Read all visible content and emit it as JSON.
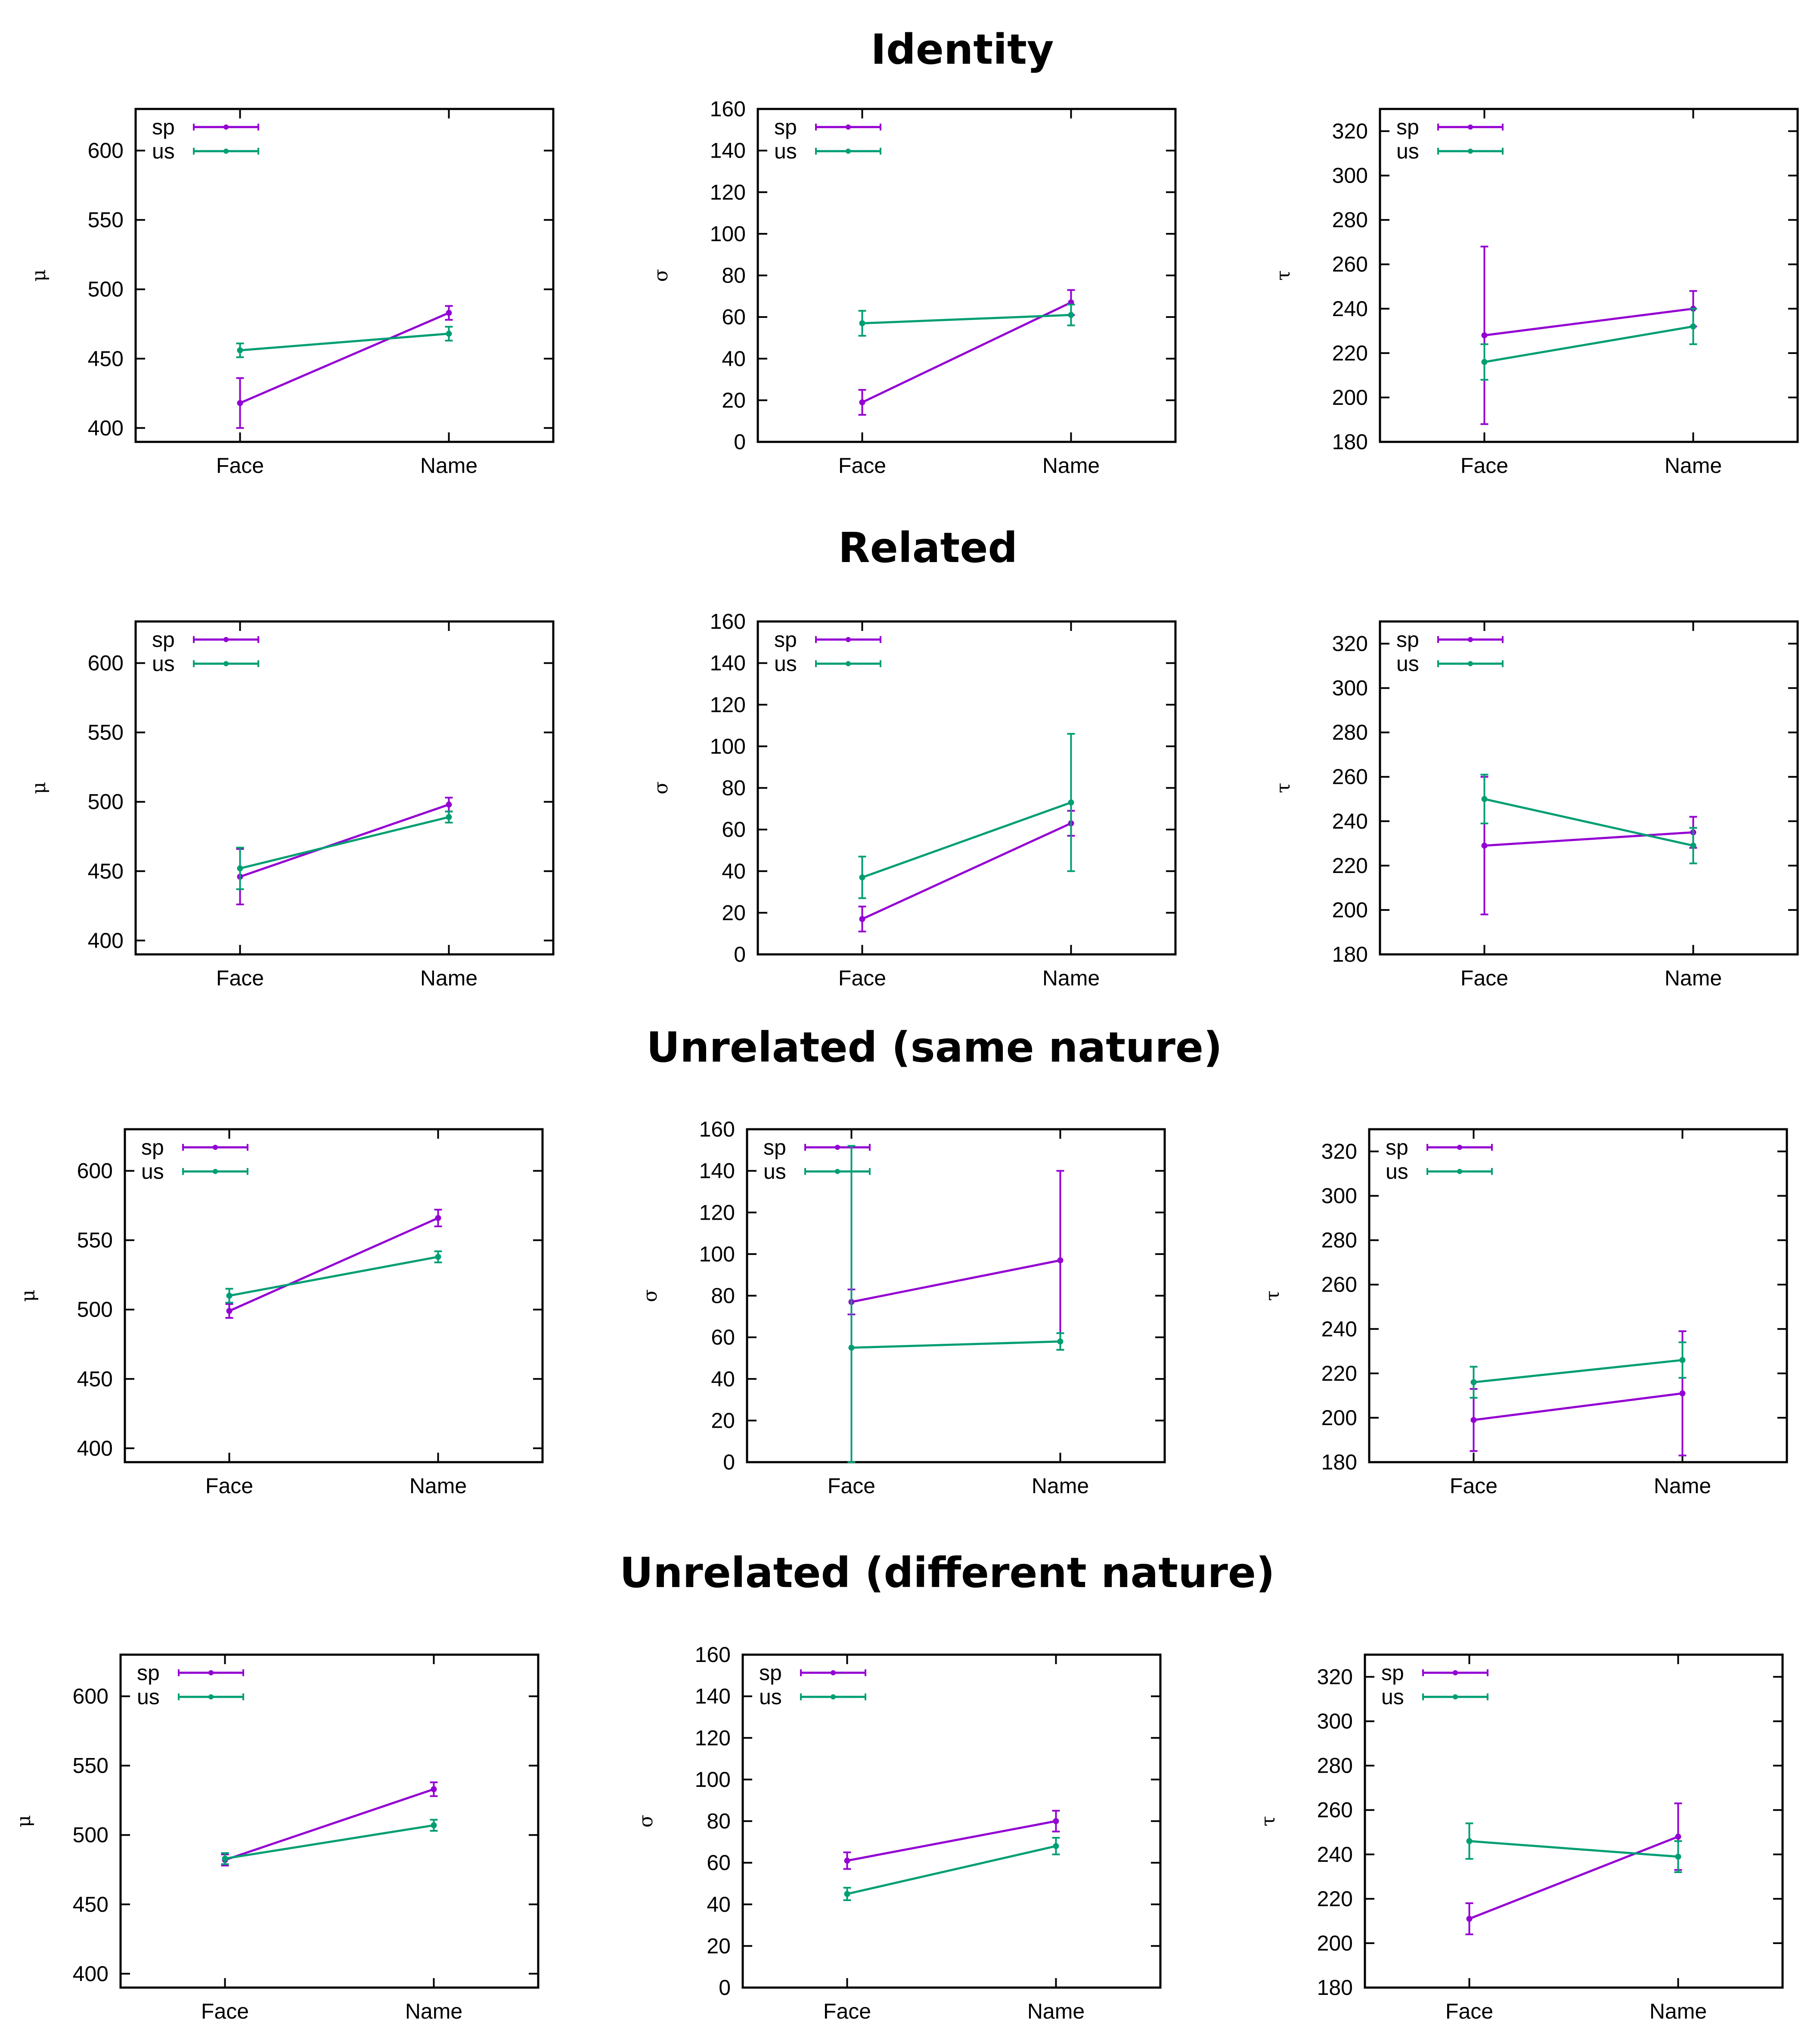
{
  "colors": {
    "sp": "#9400d3",
    "us": "#009e73"
  },
  "rows": [
    {
      "title": "Identity"
    },
    {
      "title": "Related"
    },
    {
      "title": "Unrelated (same nature)"
    },
    {
      "title": "Unrelated (different nature)"
    }
  ],
  "chart_data": [
    {
      "row": 0,
      "col": 0,
      "type": "line",
      "ylabel": "μ",
      "categories": [
        "Face",
        "Name"
      ],
      "ylim": [
        390,
        630
      ],
      "yticks": [
        400,
        450,
        500,
        550,
        600
      ],
      "legend": [
        "sp",
        "us"
      ],
      "series": [
        {
          "name": "sp",
          "values": [
            418,
            483
          ],
          "err": [
            18,
            5
          ]
        },
        {
          "name": "us",
          "values": [
            456,
            468
          ],
          "err": [
            5,
            5
          ]
        }
      ]
    },
    {
      "row": 0,
      "col": 1,
      "type": "line",
      "ylabel": "σ",
      "categories": [
        "Face",
        "Name"
      ],
      "ylim": [
        0,
        160
      ],
      "yticks": [
        0,
        20,
        40,
        60,
        80,
        100,
        120,
        140,
        160
      ],
      "legend": [
        "sp",
        "us"
      ],
      "series": [
        {
          "name": "sp",
          "values": [
            19,
            67
          ],
          "err": [
            6,
            6
          ]
        },
        {
          "name": "us",
          "values": [
            57,
            61
          ],
          "err": [
            6,
            5
          ]
        }
      ]
    },
    {
      "row": 0,
      "col": 2,
      "type": "line",
      "ylabel": "τ",
      "categories": [
        "Face",
        "Name"
      ],
      "ylim": [
        180,
        330
      ],
      "yticks": [
        180,
        200,
        220,
        240,
        260,
        280,
        300,
        320
      ],
      "legend": [
        "sp",
        "us"
      ],
      "series": [
        {
          "name": "sp",
          "values": [
            228,
            240
          ],
          "err": [
            40,
            8
          ]
        },
        {
          "name": "us",
          "values": [
            216,
            232
          ],
          "err": [
            8,
            8
          ]
        }
      ]
    },
    {
      "row": 1,
      "col": 0,
      "type": "line",
      "ylabel": "μ",
      "categories": [
        "Face",
        "Name"
      ],
      "ylim": [
        390,
        630
      ],
      "yticks": [
        400,
        450,
        500,
        550,
        600
      ],
      "legend": [
        "sp",
        "us"
      ],
      "series": [
        {
          "name": "sp",
          "values": [
            446,
            498
          ],
          "err": [
            20,
            5
          ]
        },
        {
          "name": "us",
          "values": [
            452,
            489
          ],
          "err": [
            15,
            4
          ]
        }
      ]
    },
    {
      "row": 1,
      "col": 1,
      "type": "line",
      "ylabel": "σ",
      "categories": [
        "Face",
        "Name"
      ],
      "ylim": [
        0,
        160
      ],
      "yticks": [
        0,
        20,
        40,
        60,
        80,
        100,
        120,
        140,
        160
      ],
      "legend": [
        "sp",
        "us"
      ],
      "series": [
        {
          "name": "sp",
          "values": [
            17,
            63
          ],
          "err": [
            6,
            6
          ]
        },
        {
          "name": "us",
          "values": [
            37,
            73
          ],
          "err": [
            10,
            33
          ]
        }
      ]
    },
    {
      "row": 1,
      "col": 2,
      "type": "line",
      "ylabel": "τ",
      "categories": [
        "Face",
        "Name"
      ],
      "ylim": [
        180,
        330
      ],
      "yticks": [
        180,
        200,
        220,
        240,
        260,
        280,
        300,
        320
      ],
      "legend": [
        "sp",
        "us"
      ],
      "series": [
        {
          "name": "sp",
          "values": [
            229,
            235
          ],
          "err": [
            31,
            7
          ]
        },
        {
          "name": "us",
          "values": [
            250,
            229
          ],
          "err": [
            11,
            8
          ]
        }
      ]
    },
    {
      "row": 2,
      "col": 0,
      "type": "line",
      "ylabel": "μ",
      "categories": [
        "Face",
        "Name"
      ],
      "ylim": [
        390,
        630
      ],
      "yticks": [
        400,
        450,
        500,
        550,
        600
      ],
      "legend": [
        "sp",
        "us"
      ],
      "series": [
        {
          "name": "sp",
          "values": [
            499,
            566
          ],
          "err": [
            5,
            6
          ]
        },
        {
          "name": "us",
          "values": [
            510,
            538
          ],
          "err": [
            5,
            4
          ]
        }
      ]
    },
    {
      "row": 2,
      "col": 1,
      "type": "line",
      "ylabel": "σ",
      "categories": [
        "Face",
        "Name"
      ],
      "ylim": [
        0,
        160
      ],
      "yticks": [
        0,
        20,
        40,
        60,
        80,
        100,
        120,
        140,
        160
      ],
      "legend": [
        "sp",
        "us"
      ],
      "series": [
        {
          "name": "sp",
          "values": [
            77,
            97
          ],
          "err": [
            6,
            43
          ]
        },
        {
          "name": "us",
          "values": [
            55,
            58
          ],
          "err": [
            97,
            4
          ]
        }
      ]
    },
    {
      "row": 2,
      "col": 2,
      "type": "line",
      "ylabel": "τ",
      "categories": [
        "Face",
        "Name"
      ],
      "ylim": [
        180,
        330
      ],
      "yticks": [
        180,
        200,
        220,
        240,
        260,
        280,
        300,
        320
      ],
      "legend": [
        "sp",
        "us"
      ],
      "series": [
        {
          "name": "sp",
          "values": [
            199,
            211
          ],
          "err": [
            14,
            28
          ]
        },
        {
          "name": "us",
          "values": [
            216,
            226
          ],
          "err": [
            7,
            8
          ]
        }
      ]
    },
    {
      "row": 3,
      "col": 0,
      "type": "line",
      "ylabel": "μ",
      "categories": [
        "Face",
        "Name"
      ],
      "ylim": [
        390,
        630
      ],
      "yticks": [
        400,
        450,
        500,
        550,
        600
      ],
      "legend": [
        "sp",
        "us"
      ],
      "series": [
        {
          "name": "sp",
          "values": [
            482,
            533
          ],
          "err": [
            4,
            5
          ]
        },
        {
          "name": "us",
          "values": [
            483,
            507
          ],
          "err": [
            4,
            4
          ]
        }
      ]
    },
    {
      "row": 3,
      "col": 1,
      "type": "line",
      "ylabel": "σ",
      "categories": [
        "Face",
        "Name"
      ],
      "ylim": [
        0,
        160
      ],
      "yticks": [
        0,
        20,
        40,
        60,
        80,
        100,
        120,
        140,
        160
      ],
      "legend": [
        "sp",
        "us"
      ],
      "series": [
        {
          "name": "sp",
          "values": [
            61,
            80
          ],
          "err": [
            4,
            5
          ]
        },
        {
          "name": "us",
          "values": [
            45,
            68
          ],
          "err": [
            3,
            4
          ]
        }
      ]
    },
    {
      "row": 3,
      "col": 2,
      "type": "line",
      "ylabel": "τ",
      "categories": [
        "Face",
        "Name"
      ],
      "ylim": [
        180,
        330
      ],
      "yticks": [
        180,
        200,
        220,
        240,
        260,
        280,
        300,
        320
      ],
      "legend": [
        "sp",
        "us"
      ],
      "series": [
        {
          "name": "sp",
          "values": [
            211,
            248
          ],
          "err": [
            7,
            15
          ]
        },
        {
          "name": "us",
          "values": [
            246,
            239
          ],
          "err": [
            8,
            7
          ]
        }
      ]
    }
  ]
}
